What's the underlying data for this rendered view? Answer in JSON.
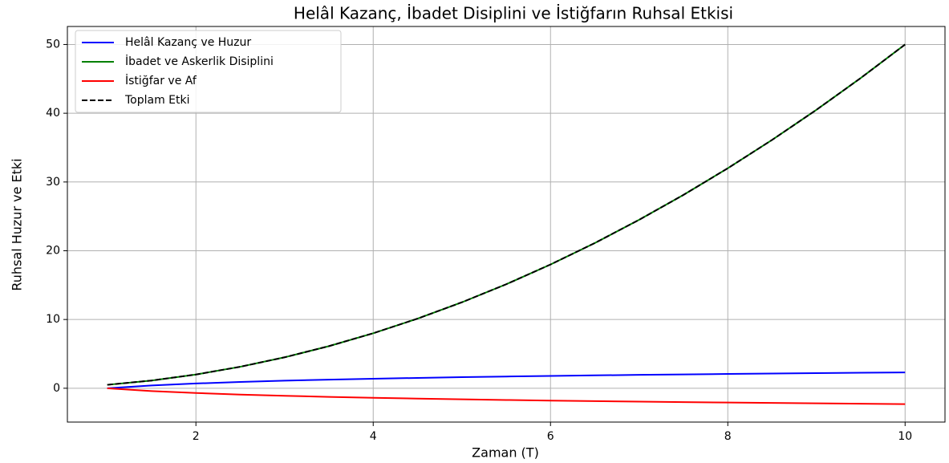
{
  "chart_data": {
    "type": "line",
    "title": "Helâl Kazanç, İbadet Disiplini ve İstiğfarın Ruhsal Etkisi",
    "x_label": "Zaman (T)",
    "y_label": "Ruhsal Huzur ve Etki",
    "x": [
      1,
      1.5,
      2,
      2.5,
      3,
      3.5,
      4,
      4.5,
      5,
      5.5,
      6,
      6.5,
      7,
      7.5,
      8,
      8.5,
      9,
      9.5,
      10
    ],
    "series": [
      {
        "name": "Helâl Kazanç ve Huzur",
        "color": "#0000ff",
        "linestyle": "solid",
        "values": [
          0,
          0.405,
          0.693,
          0.916,
          1.099,
          1.253,
          1.386,
          1.504,
          1.609,
          1.705,
          1.792,
          1.872,
          1.946,
          2.015,
          2.079,
          2.14,
          2.197,
          2.251,
          2.303
        ]
      },
      {
        "name": "İbadet ve Askerlik Disiplini",
        "color": "#008000",
        "linestyle": "solid",
        "values": [
          0.5,
          1.125,
          2,
          3.125,
          4.5,
          6.125,
          8,
          10.125,
          12.5,
          15.125,
          18,
          21.125,
          24.5,
          28.125,
          32,
          36.125,
          40.5,
          45.125,
          50
        ]
      },
      {
        "name": "İstiğfar ve Af",
        "color": "#ff0000",
        "linestyle": "solid",
        "values": [
          0,
          -0.405,
          -0.693,
          -0.916,
          -1.099,
          -1.253,
          -1.386,
          -1.504,
          -1.609,
          -1.705,
          -1.792,
          -1.872,
          -1.946,
          -2.015,
          -2.079,
          -2.14,
          -2.197,
          -2.251,
          -2.303
        ]
      },
      {
        "name": "Toplam Etki",
        "color": "#000000",
        "linestyle": "dashed",
        "values": [
          0.5,
          1.125,
          2,
          3.125,
          4.5,
          6.125,
          8,
          10.125,
          12.5,
          15.125,
          18,
          21.125,
          24.5,
          28.125,
          32,
          36.125,
          40.5,
          45.125,
          50
        ]
      }
    ],
    "xlim": [
      0.55,
      10.45
    ],
    "ylim": [
      -4.92,
      52.62
    ],
    "xticks": [
      2,
      4,
      6,
      8,
      10
    ],
    "yticks": [
      0,
      10,
      20,
      30,
      40,
      50
    ],
    "grid": true,
    "legend": "upper left"
  }
}
